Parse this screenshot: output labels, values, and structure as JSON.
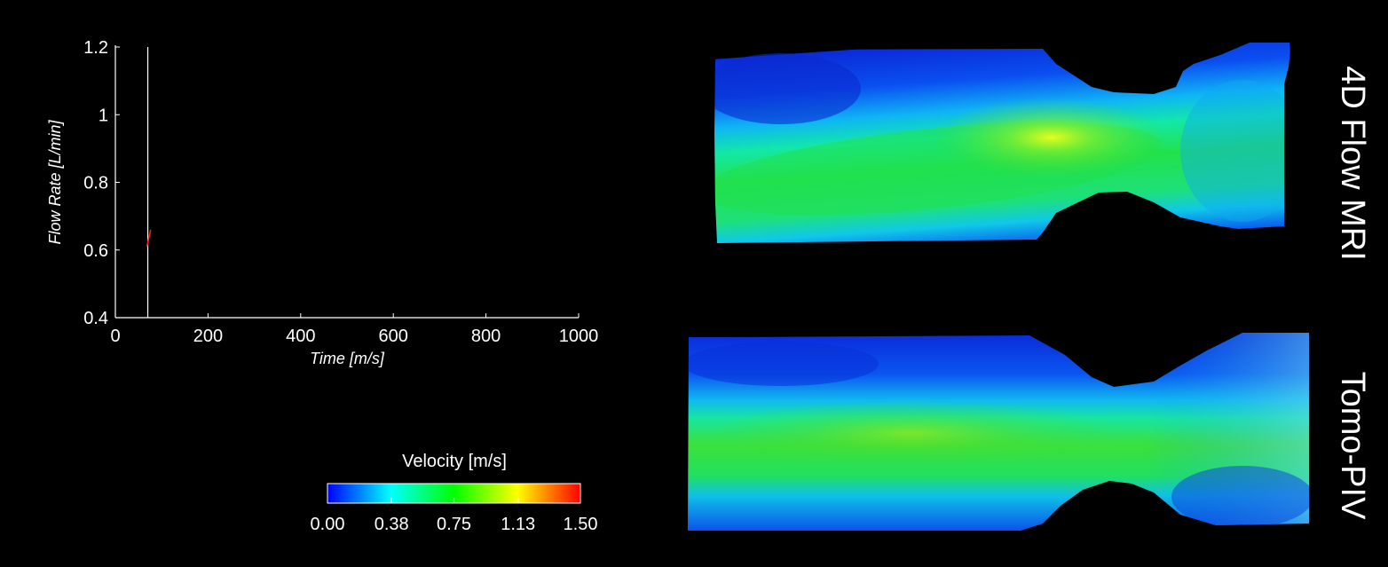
{
  "chart_data": [
    {
      "type": "line",
      "title": "",
      "xlabel": "Time [m/s]",
      "ylabel": "Flow Rate [L/min]",
      "xlim": [
        0,
        1000
      ],
      "ylim": [
        0.4,
        1.2
      ],
      "x_ticks": [
        "0",
        "200",
        "400",
        "600",
        "800",
        "1000"
      ],
      "y_ticks": [
        "0.4",
        "0.6",
        "0.8",
        "1",
        "1.2"
      ],
      "grid": false,
      "cursor_time": 70,
      "series": [
        {
          "color": "#ff2020",
          "x": [
            68,
            70,
            72,
            74,
            76
          ],
          "y": [
            0.61,
            0.62,
            0.635,
            0.645,
            0.66
          ]
        }
      ]
    },
    {
      "type": "heatmap",
      "colorbar": {
        "title": "Velocity [m/s]",
        "min": 0.0,
        "max": 1.5,
        "tick_labels": [
          "0.00",
          "0.38",
          "0.75",
          "1.13",
          "1.50"
        ],
        "colormap": [
          "#0000ff",
          "#0080ff",
          "#00ffff",
          "#00ff80",
          "#00ff00",
          "#80ff00",
          "#ffff00",
          "#ff8000",
          "#ff0000"
        ]
      },
      "panels": [
        {
          "label": "4D Flow MRI",
          "peak_velocity": 1.0
        },
        {
          "label": "Tomo-PIV",
          "peak_velocity": 0.85
        }
      ]
    }
  ]
}
